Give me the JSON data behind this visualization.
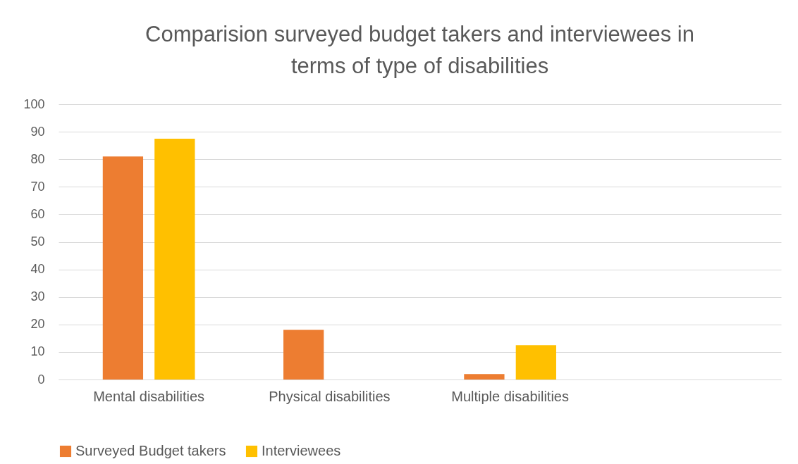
{
  "chart_data": {
    "type": "bar",
    "title": "Comparision surveyed budget takers and interviewees in terms of type of disabilities",
    "categories": [
      "Mental disabilities",
      "Physical disabilities",
      "Multiple disabilities",
      null
    ],
    "series": [
      {
        "name": "Surveyed Budget takers",
        "color": "#ed7d31",
        "values": [
          81,
          18,
          2,
          null
        ]
      },
      {
        "name": "Interviewees",
        "color": "#ffc000",
        "values": [
          87.5,
          0,
          12.5,
          null
        ]
      }
    ],
    "ylim": [
      0,
      100
    ],
    "yticks": [
      0,
      10,
      20,
      30,
      40,
      50,
      60,
      70,
      80,
      90,
      100
    ],
    "grid": "y",
    "legend": "bottom"
  }
}
